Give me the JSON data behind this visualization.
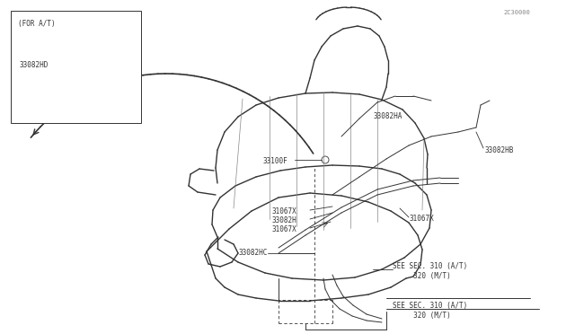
{
  "bg_color": "#ffffff",
  "line_color": "#333333",
  "label_color": "#333333",
  "fig_width": 6.4,
  "fig_height": 3.72,
  "dpi": 100,
  "title": "",
  "watermark": "2C30000",
  "labels": {
    "see_sec1": "SEE SEC. 310 (A/T)\n     320 (M/T)",
    "see_sec2": "SEE SEC. 310 (A/T)\n     320 (M/T)",
    "33082HC": "33082HC",
    "31067X_1": "31067X",
    "33082H": "33082H",
    "31067X_2": "31067X",
    "31067X_3": "31067X",
    "33100F": "33100F",
    "33082HA": "33082HA",
    "33082HB": "33082HB",
    "for_at": "(FOR A/T)",
    "33082HD": "33082HD"
  }
}
